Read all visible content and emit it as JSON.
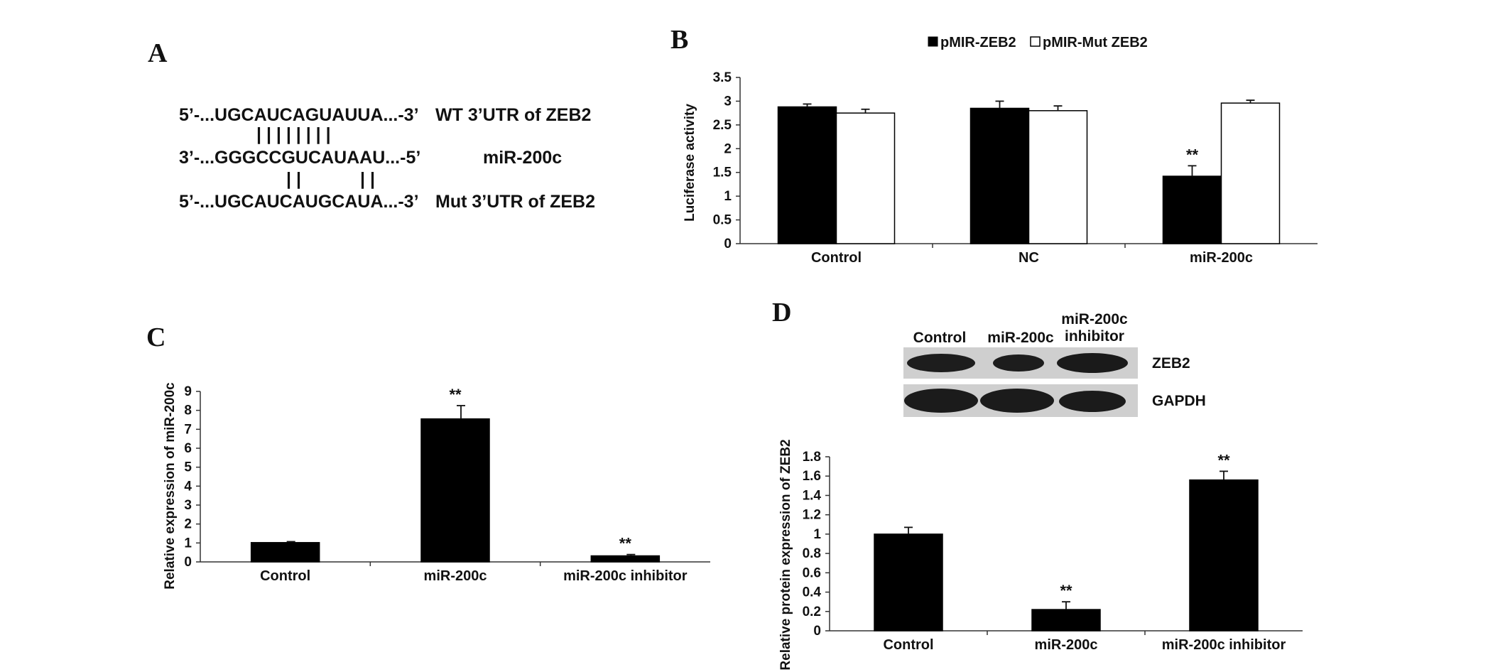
{
  "panel_a": {
    "letter": "A",
    "rows": [
      {
        "seq": "5’-...UGCAUCAGUAUUA...-3’",
        "label": "WT 3’UTR of ZEB2"
      },
      {
        "seq": "3’-...GGGCCGUCAUAAU...-5’",
        "label": "miR-200c"
      },
      {
        "seq": "5’-...UGCAUCAUGCAUA...-3’",
        "label": "Mut 3’UTR of ZEB2"
      }
    ],
    "pairs_top": "| | | | | | | |",
    "pairs_bottom_left": "| |",
    "pairs_bottom_right": "| |"
  },
  "panel_b": {
    "letter": "B"
  },
  "panel_c": {
    "letter": "C"
  },
  "panel_d": {
    "letter": "D",
    "blot_columns": [
      "Control",
      "miR-200c",
      "miR-200c",
      "inhibitor"
    ],
    "blot_rows": [
      "ZEB2",
      "GAPDH"
    ]
  },
  "chart_data": [
    {
      "id": "B",
      "type": "bar",
      "title": "",
      "xlabel": "",
      "ylabel": "Luciferase activity",
      "categories": [
        "Control",
        "NC",
        "miR-200c"
      ],
      "series": [
        {
          "name": "pMIR-ZEB2",
          "color": "#000000",
          "values": [
            2.88,
            2.85,
            1.42
          ],
          "errors": [
            0.06,
            0.15,
            0.22
          ]
        },
        {
          "name": "pMIR-Mut ZEB2",
          "color": "#ffffff",
          "values": [
            2.75,
            2.8,
            2.96
          ],
          "errors": [
            0.08,
            0.1,
            0.06
          ]
        }
      ],
      "annotations": [
        {
          "category": "miR-200c",
          "series": "pMIR-ZEB2",
          "text": "**"
        }
      ],
      "ylim": [
        0,
        3.5
      ],
      "yticks": [
        "0",
        "0.5",
        "1",
        "1.5",
        "2",
        "2.5",
        "3",
        "3.5"
      ],
      "legend_position": "top"
    },
    {
      "id": "C",
      "type": "bar",
      "title": "",
      "xlabel": "",
      "ylabel": "Relative expression of miR-200c",
      "categories": [
        "Control",
        "miR-200c",
        "miR-200c inhibitor"
      ],
      "series": [
        {
          "color": "#000000",
          "values": [
            1.02,
            7.55,
            0.32
          ],
          "errors": [
            0.05,
            0.7,
            0.07
          ]
        }
      ],
      "annotations": [
        {
          "category": "miR-200c",
          "text": "**"
        },
        {
          "category": "miR-200c inhibitor",
          "text": "**"
        }
      ],
      "ylim": [
        0,
        9
      ],
      "yticks": [
        "0",
        "1",
        "2",
        "3",
        "4",
        "5",
        "6",
        "7",
        "8",
        "9"
      ]
    },
    {
      "id": "D",
      "type": "bar",
      "title": "",
      "xlabel": "",
      "ylabel": "Relative protein expression of ZEB2",
      "categories": [
        "Control",
        "miR-200c",
        "miR-200c inhibitor"
      ],
      "series": [
        {
          "color": "#000000",
          "values": [
            1.0,
            0.22,
            1.56
          ],
          "errors": [
            0.07,
            0.08,
            0.09
          ]
        }
      ],
      "annotations": [
        {
          "category": "miR-200c",
          "text": "**"
        },
        {
          "category": "miR-200c inhibitor",
          "text": "**"
        }
      ],
      "ylim": [
        0,
        1.8
      ],
      "yticks": [
        "0",
        "0.2",
        "0.4",
        "0.6",
        "0.8",
        "1",
        "1.2",
        "1.4",
        "1.6",
        "1.8"
      ]
    }
  ]
}
